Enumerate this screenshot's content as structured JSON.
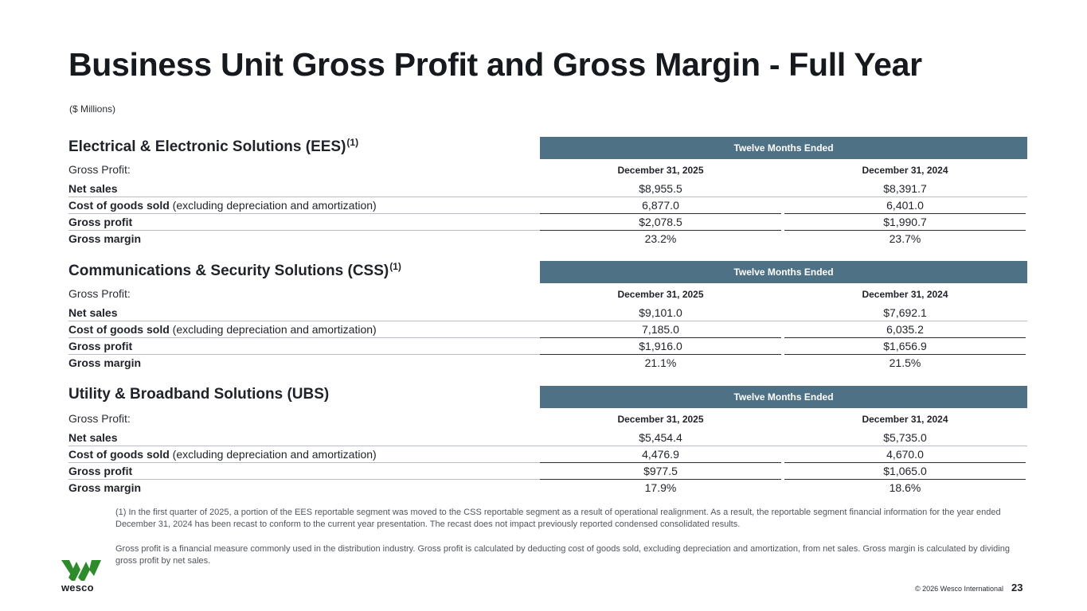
{
  "title": "Business Unit Gross Profit and Gross Margin - Full Year",
  "units": "($ Millions)",
  "band_label": "Twelve Months Ended",
  "gross_profit_label": "Gross Profit:",
  "col1": "December 31, 2025",
  "col2": "December 31, 2024",
  "row_labels": {
    "net_sales": "Net sales",
    "cogs_bold": "Cost of goods sold",
    "cogs_rest": " (excluding depreciation and amortization)",
    "gross_profit": "Gross profit",
    "gross_margin": "Gross margin"
  },
  "sections": [
    {
      "title": "Electrical & Electronic Solutions (EES)",
      "sup": "(1)",
      "net_sales": [
        "$8,955.5",
        "$8,391.7"
      ],
      "cogs": [
        "6,877.0",
        "6,401.0"
      ],
      "gross_profit": [
        "$2,078.5",
        "$1,990.7"
      ],
      "gross_margin": [
        "23.2%",
        "23.7%"
      ]
    },
    {
      "title": "Communications & Security Solutions (CSS)",
      "sup": "(1)",
      "net_sales": [
        "$9,101.0",
        "$7,692.1"
      ],
      "cogs": [
        "7,185.0",
        "6,035.2"
      ],
      "gross_profit": [
        "$1,916.0",
        "$1,656.9"
      ],
      "gross_margin": [
        "21.1%",
        "21.5%"
      ]
    },
    {
      "title": "Utility & Broadband Solutions (UBS)",
      "sup": "",
      "net_sales": [
        "$5,454.4",
        "$5,735.0"
      ],
      "cogs": [
        "4,476.9",
        "4,670.0"
      ],
      "gross_profit": [
        "$977.5",
        "$1,065.0"
      ],
      "gross_margin": [
        "17.9%",
        "18.6%"
      ]
    }
  ],
  "footnote_1": "(1)  In the first quarter of 2025, a portion of the EES reportable segment was moved to the CSS reportable segment as a result of operational realignment. As a result, the reportable segment financial information for the year ended December 31, 2024 has been recast to conform to the current year presentation. The recast does not impact previously reported condensed consolidated results.",
  "footnote_2": "Gross profit is a financial measure commonly used in the distribution industry. Gross profit is calculated by deducting cost of goods sold, excluding depreciation and amortization, from net sales. Gross margin is calculated by dividing gross profit by net sales.",
  "logo_text": "wesco",
  "copyright": "© 2026 Wesco International",
  "page_number": "23",
  "colors": {
    "band": "#4e7185",
    "logo_green": "#2f8a2c"
  },
  "icons": {
    "logo": "wesco-logo-icon"
  }
}
